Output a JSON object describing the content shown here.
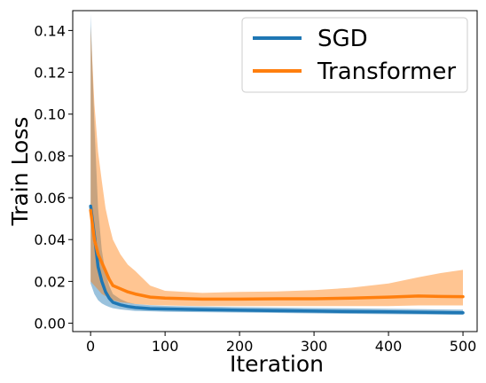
{
  "chart_data": {
    "type": "line",
    "title": "",
    "xlabel": "Iteration",
    "ylabel": "Train Loss",
    "xlim": [
      -24,
      519
    ],
    "ylim": [
      -0.004,
      0.1495
    ],
    "xticks": [
      0,
      100,
      200,
      300,
      400,
      500
    ],
    "yticks": [
      0.0,
      0.02,
      0.04,
      0.06,
      0.08,
      0.1,
      0.12,
      0.14
    ],
    "xtick_labels": [
      "0",
      "100",
      "200",
      "300",
      "400",
      "500"
    ],
    "ytick_labels": [
      "0.00",
      "0.02",
      "0.04",
      "0.06",
      "0.08",
      "0.10",
      "0.12",
      "0.14"
    ],
    "grid": false,
    "legend_position": "top-right",
    "series": [
      {
        "name": "SGD",
        "color": "#1f77b4",
        "x": [
          0,
          5,
          10,
          15,
          20,
          25,
          30,
          40,
          50,
          60,
          80,
          100,
          150,
          200,
          250,
          300,
          350,
          400,
          450,
          500
        ],
        "y": [
          0.056,
          0.042,
          0.027,
          0.02,
          0.015,
          0.012,
          0.01,
          0.0088,
          0.008,
          0.0075,
          0.007,
          0.0068,
          0.0065,
          0.0062,
          0.006,
          0.0058,
          0.0056,
          0.0054,
          0.0052,
          0.005
        ],
        "lower": [
          0.019,
          0.014,
          0.011,
          0.0095,
          0.0085,
          0.0078,
          0.0072,
          0.0066,
          0.0062,
          0.0059,
          0.0057,
          0.0055,
          0.0053,
          0.0051,
          0.0049,
          0.0047,
          0.0045,
          0.0043,
          0.0042,
          0.004
        ],
        "upper": [
          0.148,
          0.095,
          0.055,
          0.035,
          0.024,
          0.018,
          0.014,
          0.0115,
          0.01,
          0.0092,
          0.0086,
          0.0083,
          0.008,
          0.0077,
          0.0075,
          0.0073,
          0.0071,
          0.0069,
          0.0067,
          0.0065
        ]
      },
      {
        "name": "Transformer",
        "color": "#ff7f0e",
        "x": [
          0,
          5,
          10,
          15,
          20,
          25,
          30,
          40,
          50,
          60,
          80,
          100,
          150,
          200,
          250,
          300,
          350,
          400,
          440,
          470,
          500
        ],
        "y": [
          0.054,
          0.04,
          0.033,
          0.029,
          0.025,
          0.021,
          0.018,
          0.0165,
          0.015,
          0.014,
          0.0125,
          0.012,
          0.0115,
          0.0115,
          0.0117,
          0.0117,
          0.012,
          0.0125,
          0.013,
          0.0128,
          0.0127
        ],
        "lower": [
          0.02,
          0.018,
          0.016,
          0.014,
          0.013,
          0.012,
          0.011,
          0.01,
          0.0097,
          0.0092,
          0.0087,
          0.0085,
          0.0082,
          0.0082,
          0.0082,
          0.0082,
          0.0082,
          0.0082,
          0.0085,
          0.0085,
          0.0085
        ],
        "upper": [
          0.142,
          0.105,
          0.082,
          0.068,
          0.055,
          0.047,
          0.04,
          0.033,
          0.028,
          0.025,
          0.018,
          0.0155,
          0.0145,
          0.015,
          0.0152,
          0.0158,
          0.017,
          0.019,
          0.022,
          0.024,
          0.0255
        ]
      }
    ]
  }
}
